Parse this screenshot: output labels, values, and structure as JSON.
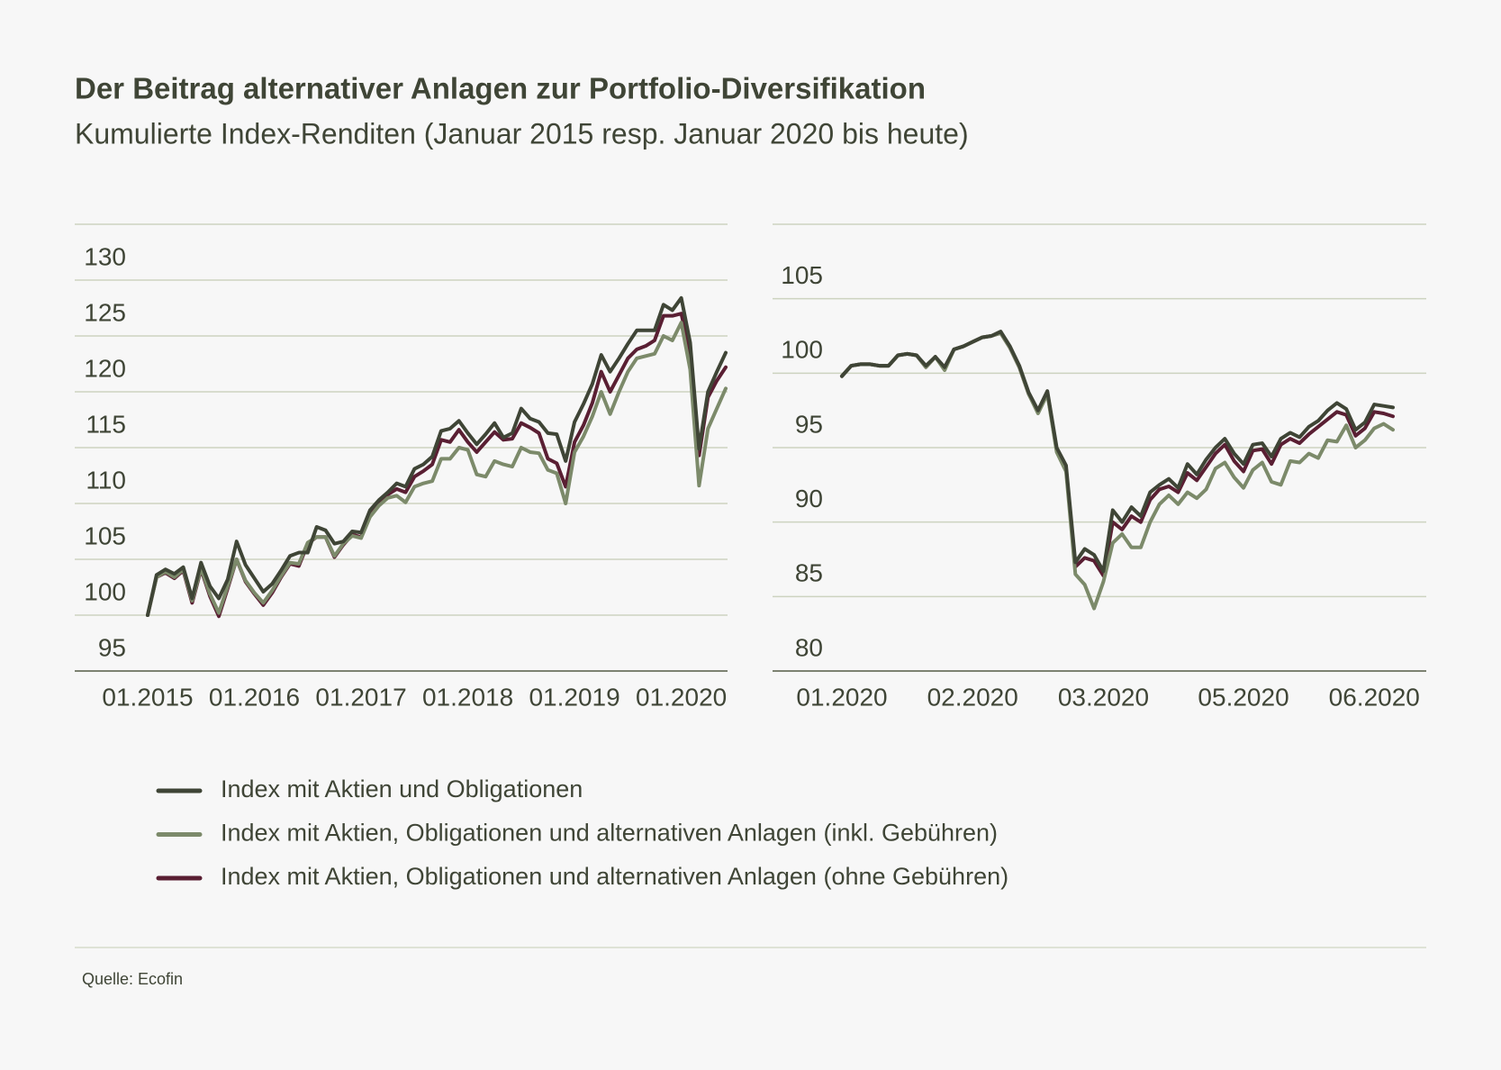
{
  "title": "Der Beitrag alternativer Anlagen zur Portfolio-Diversifikation",
  "subtitle": "Kumulierte Index-Renditen (Januar 2015 resp. Januar 2020 bis heute)",
  "source": "Quelle: Ecofin",
  "chart_data": [
    {
      "type": "line",
      "categories": [
        "01.2015",
        null,
        null,
        null,
        null,
        null,
        null,
        null,
        null,
        null,
        null,
        null,
        "01.2016",
        null,
        null,
        null,
        null,
        null,
        null,
        null,
        null,
        null,
        null,
        null,
        "01.2017",
        null,
        null,
        null,
        null,
        null,
        null,
        null,
        null,
        null,
        null,
        null,
        "01.2018",
        null,
        null,
        null,
        null,
        null,
        null,
        null,
        null,
        null,
        null,
        null,
        "01.2019",
        null,
        null,
        null,
        null,
        null,
        null,
        null,
        null,
        null,
        null,
        null,
        "01.2020",
        null,
        null,
        null,
        null,
        null
      ],
      "ylim": [
        95,
        135
      ],
      "yticks": [
        95,
        100,
        105,
        110,
        115,
        120,
        125,
        130
      ],
      "grid": true,
      "series": [
        {
          "name": "Index mit Aktien und Obligationen",
          "color": "#3f4536",
          "values": [
            100,
            103.6,
            104.1,
            103.7,
            104.3,
            101.5,
            104.7,
            102.6,
            101.5,
            103.2,
            106.6,
            104.5,
            103.3,
            102.1,
            102.8,
            104.0,
            105.3,
            105.6,
            105.6,
            107.9,
            107.6,
            106.4,
            106.6,
            107.5,
            107.4,
            109.4,
            110.3,
            111.0,
            111.8,
            111.5,
            113.1,
            113.5,
            114.2,
            116.5,
            116.7,
            117.4,
            116.3,
            115.3,
            116.2,
            117.2,
            115.9,
            116.3,
            118.5,
            117.6,
            117.3,
            116.3,
            116.2,
            113.8,
            117.3,
            118.9,
            120.7,
            123.3,
            121.8,
            123.0,
            124.3,
            125.5,
            125.5,
            125.5,
            127.8,
            127.3,
            128.4,
            124.4,
            114.9,
            120.0,
            121.8,
            123.5
          ]
        },
        {
          "name": "Index mit Aktien, Obligationen und alternativen Anlagen (inkl. Gebühren)",
          "color": "#7c8a6a",
          "values": [
            100,
            103.4,
            103.9,
            103.4,
            104.1,
            101.3,
            104.2,
            101.9,
            100.2,
            102.6,
            105.0,
            103.1,
            102.0,
            101.1,
            102.2,
            103.5,
            104.7,
            104.6,
            106.5,
            107.0,
            107.0,
            105.3,
            106.4,
            107.1,
            106.9,
            108.8,
            109.8,
            110.5,
            110.7,
            110.1,
            111.5,
            111.8,
            112.0,
            114.0,
            114.0,
            115.0,
            114.8,
            112.6,
            112.4,
            113.8,
            113.5,
            113.3,
            115.0,
            114.6,
            114.5,
            113.0,
            112.7,
            110.0,
            114.6,
            116.0,
            117.8,
            120.0,
            118.0,
            120.0,
            121.8,
            123.0,
            123.2,
            123.4,
            125.0,
            124.6,
            126.2,
            122.0,
            111.6,
            116.7,
            118.5,
            120.3
          ]
        },
        {
          "name": "Index mit Aktien, Obligationen und alternativen Anlagen (ohne Gebühren)",
          "color": "#5a1f33",
          "values": [
            100,
            103.4,
            103.8,
            103.3,
            104.0,
            101.1,
            104.1,
            101.7,
            99.9,
            102.4,
            105.0,
            103.0,
            101.9,
            100.9,
            102.0,
            103.4,
            104.6,
            104.4,
            106.4,
            107.0,
            107.0,
            105.2,
            106.3,
            107.2,
            107.0,
            109.0,
            110.0,
            110.8,
            111.3,
            111.0,
            112.4,
            112.9,
            113.5,
            115.7,
            115.5,
            116.6,
            115.5,
            114.6,
            115.5,
            116.4,
            115.7,
            115.8,
            117.2,
            116.8,
            116.3,
            114.0,
            113.6,
            111.5,
            115.5,
            117.0,
            119.0,
            121.8,
            120.0,
            121.5,
            123.0,
            123.8,
            124.1,
            124.6,
            126.8,
            126.8,
            127.0,
            123.5,
            114.3,
            119.5,
            121.0,
            122.2
          ]
        }
      ]
    },
    {
      "type": "line",
      "categories": [
        "01.2020",
        null,
        null,
        null,
        null,
        null,
        null,
        null,
        null,
        null,
        null,
        null,
        null,
        null,
        "02.2020",
        null,
        null,
        null,
        null,
        null,
        null,
        null,
        null,
        null,
        null,
        null,
        null,
        null,
        "03.2020",
        null,
        null,
        null,
        null,
        null,
        null,
        null,
        null,
        null,
        null,
        null,
        null,
        null,
        null,
        "05.2020",
        null,
        null,
        null,
        null,
        null,
        null,
        null,
        null,
        null,
        null,
        null,
        null,
        null,
        "06.2020",
        null,
        null
      ],
      "ylim": [
        80,
        110
      ],
      "yticks": [
        80,
        85,
        90,
        95,
        100,
        105
      ],
      "grid": true,
      "series": [
        {
          "color": "#3f4536",
          "values": [
            99.8,
            100.5,
            100.6,
            100.6,
            100.5,
            100.5,
            101.2,
            101.3,
            101.2,
            100.5,
            101.1,
            100.4,
            101.6,
            101.8,
            102.1,
            102.4,
            102.5,
            102.8,
            101.8,
            100.5,
            98.7,
            97.5,
            98.8,
            95.0,
            93.8,
            87.3,
            88.2,
            87.8,
            86.7,
            90.8,
            90.0,
            91.0,
            90.4,
            92.0,
            92.5,
            92.9,
            92.3,
            93.9,
            93.2,
            94.2,
            95.0,
            95.6,
            94.6,
            93.9,
            95.2,
            95.3,
            94.4,
            95.6,
            96.0,
            95.7,
            96.4,
            96.8,
            97.5,
            98.0,
            97.6,
            96.2,
            96.7,
            97.9,
            97.8,
            97.7
          ]
        },
        {
          "color": "#7c8a6a",
          "values": [
            99.8,
            100.5,
            100.6,
            100.6,
            100.5,
            100.5,
            101.2,
            101.3,
            101.2,
            100.4,
            101.1,
            100.2,
            101.6,
            101.8,
            102.1,
            102.4,
            102.5,
            102.7,
            101.7,
            100.4,
            98.6,
            97.3,
            98.6,
            94.7,
            93.4,
            86.5,
            85.8,
            84.2,
            86.0,
            88.6,
            89.2,
            88.3,
            88.3,
            90.0,
            91.2,
            91.8,
            91.2,
            92.0,
            91.6,
            92.2,
            93.6,
            94.0,
            93.0,
            92.3,
            93.5,
            94.0,
            92.7,
            92.5,
            94.1,
            94.0,
            94.6,
            94.3,
            95.5,
            95.4,
            96.5,
            95.0,
            95.5,
            96.3,
            96.6,
            96.2
          ]
        },
        {
          "color": "#5a1f33",
          "values": [
            99.8,
            100.5,
            100.6,
            100.6,
            100.5,
            100.5,
            101.2,
            101.3,
            101.2,
            100.4,
            101.1,
            100.3,
            101.6,
            101.8,
            102.1,
            102.4,
            102.5,
            102.7,
            101.7,
            100.4,
            98.6,
            97.4,
            98.7,
            94.8,
            93.6,
            87.0,
            87.6,
            87.4,
            86.4,
            90.0,
            89.5,
            90.4,
            90.0,
            91.5,
            92.2,
            92.4,
            92.0,
            93.3,
            92.8,
            93.7,
            94.6,
            95.2,
            94.1,
            93.4,
            94.8,
            94.9,
            93.9,
            95.2,
            95.6,
            95.3,
            95.9,
            96.4,
            96.9,
            97.4,
            97.2,
            95.8,
            96.3,
            97.4,
            97.3,
            97.1
          ]
        }
      ]
    }
  ]
}
